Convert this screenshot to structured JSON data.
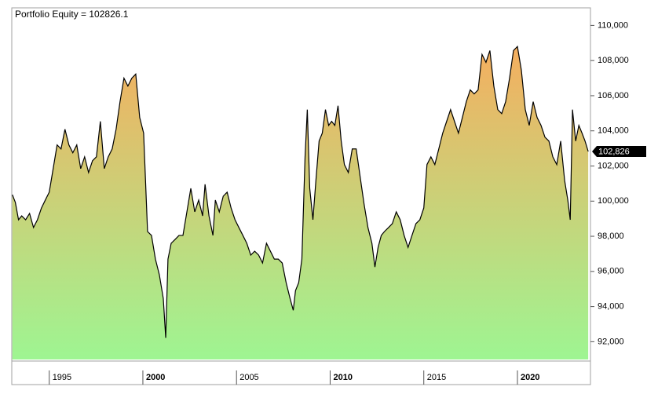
{
  "chart_data": {
    "type": "area",
    "title": "Portfolio Equity = 102826.1",
    "x": [
      1993.03,
      1993.19,
      1993.36,
      1993.53,
      1993.74,
      1993.95,
      1994.16,
      1994.37,
      1994.58,
      1994.79,
      1995.0,
      1995.21,
      1995.42,
      1995.63,
      1995.84,
      1996.05,
      1996.26,
      1996.47,
      1996.68,
      1996.89,
      1997.1,
      1997.31,
      1997.52,
      1997.73,
      1997.94,
      1998.15,
      1998.36,
      1998.57,
      1998.78,
      1998.99,
      1999.2,
      1999.41,
      1999.62,
      1999.83,
      2000.04,
      2000.25,
      2000.46,
      2000.67,
      2000.88,
      2001.09,
      2001.22,
      2001.34,
      2001.51,
      2001.72,
      2001.93,
      2002.14,
      2002.35,
      2002.56,
      2002.77,
      2002.98,
      2003.19,
      2003.32,
      2003.53,
      2003.74,
      2003.87,
      2004.08,
      2004.29,
      2004.5,
      2004.71,
      2004.92,
      2005.13,
      2005.34,
      2005.55,
      2005.76,
      2005.97,
      2006.18,
      2006.39,
      2006.6,
      2006.81,
      2007.02,
      2007.23,
      2007.44,
      2007.65,
      2007.86,
      2008.03,
      2008.15,
      2008.32,
      2008.49,
      2008.66,
      2008.78,
      2008.91,
      2009.08,
      2009.24,
      2009.41,
      2009.58,
      2009.75,
      2009.92,
      2010.08,
      2010.25,
      2010.42,
      2010.59,
      2010.76,
      2010.97,
      2011.18,
      2011.39,
      2011.6,
      2011.81,
      2012.02,
      2012.23,
      2012.39,
      2012.56,
      2012.73,
      2012.9,
      2013.11,
      2013.32,
      2013.53,
      2013.74,
      2013.95,
      2014.16,
      2014.37,
      2014.58,
      2014.79,
      2015.0,
      2015.17,
      2015.38,
      2015.59,
      2015.8,
      2016.01,
      2016.22,
      2016.43,
      2016.64,
      2016.85,
      2017.06,
      2017.27,
      2017.48,
      2017.69,
      2017.9,
      2018.11,
      2018.32,
      2018.53,
      2018.74,
      2018.95,
      2019.16,
      2019.37,
      2019.58,
      2019.79,
      2020.0,
      2020.21,
      2020.42,
      2020.63,
      2020.84,
      2021.05,
      2021.26,
      2021.47,
      2021.68,
      2021.89,
      2022.1,
      2022.31,
      2022.52,
      2022.69,
      2022.82,
      2022.94,
      2023.11,
      2023.28,
      2023.45,
      2023.61,
      2023.78
    ],
    "values": [
      100370,
      99930,
      98940,
      99160,
      98940,
      99300,
      98500,
      98940,
      99600,
      100060,
      100510,
      101850,
      103200,
      102970,
      104090,
      103200,
      102750,
      103200,
      101850,
      102520,
      101630,
      102300,
      102520,
      104540,
      101850,
      102520,
      102970,
      104090,
      105660,
      107000,
      106550,
      107000,
      107230,
      104760,
      103870,
      98270,
      98050,
      96700,
      95810,
      94460,
      92220,
      96700,
      97600,
      97820,
      98050,
      98050,
      99390,
      100730,
      99390,
      100060,
      99160,
      100960,
      99160,
      98050,
      100060,
      99390,
      100280,
      100510,
      99610,
      98940,
      98490,
      98050,
      97600,
      96930,
      97150,
      96930,
      96480,
      97600,
      97150,
      96700,
      96700,
      96480,
      95360,
      94460,
      93790,
      94910,
      95360,
      96700,
      102520,
      105210,
      100730,
      98940,
      101180,
      103420,
      103870,
      105210,
      104310,
      104540,
      104310,
      105430,
      103420,
      102080,
      101630,
      102970,
      102970,
      101400,
      99840,
      98490,
      97600,
      96250,
      97370,
      98050,
      98270,
      98490,
      98720,
      99390,
      98940,
      98050,
      97370,
      98050,
      98720,
      98940,
      99610,
      102080,
      102520,
      102080,
      102970,
      103870,
      104540,
      105210,
      104540,
      103870,
      104760,
      105660,
      106330,
      106100,
      106330,
      108350,
      107900,
      108570,
      106550,
      105210,
      104980,
      105660,
      107000,
      108570,
      108800,
      107450,
      105210,
      104310,
      105660,
      104760,
      104310,
      103640,
      103420,
      102520,
      102080,
      103420,
      101180,
      100060,
      98940,
      105210,
      103420,
      104310,
      103870,
      103420,
      102826.1
    ],
    "last_value_label": "102,826",
    "line_color": "#000000",
    "fill_gradient": [
      "#f5ae5f",
      "#9ef592"
    ],
    "xlim": [
      1993,
      2023.9
    ],
    "xticks": [
      1995,
      2000,
      2005,
      2010,
      2015,
      2020
    ],
    "ylim": [
      90900,
      111000
    ],
    "yticks": [
      {
        "value": 92000,
        "label": "92,000"
      },
      {
        "value": 94000,
        "label": "94,000"
      },
      {
        "value": 96000,
        "label": "96,000"
      },
      {
        "value": 98000,
        "label": "98,000"
      },
      {
        "value": 100000,
        "label": "100,000"
      },
      {
        "value": 102000,
        "label": "102,000"
      },
      {
        "value": 104000,
        "label": "104,000"
      },
      {
        "value": 106000,
        "label": "106,000"
      },
      {
        "value": 108000,
        "label": "108,000"
      },
      {
        "value": 110000,
        "label": "110,000"
      }
    ]
  }
}
